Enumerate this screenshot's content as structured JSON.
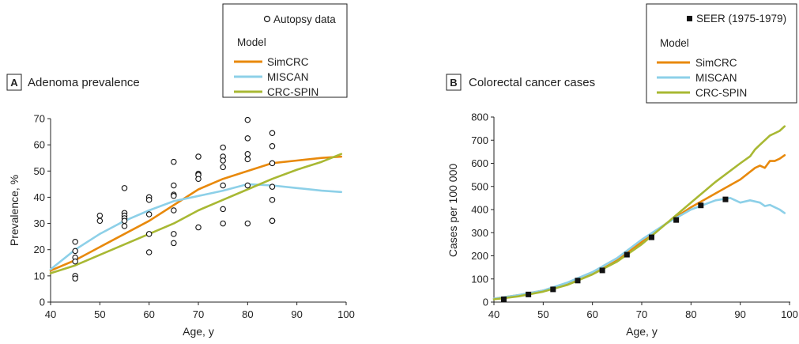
{
  "colors": {
    "simcrc": "#E8890C",
    "miscan": "#8DD0E8",
    "crcspin": "#A8B833",
    "marker": "#111111"
  },
  "chart_data": [
    {
      "type": "line",
      "letter": "A",
      "title": "Adenoma prevalence",
      "xlabel": "Age, y",
      "ylabel": "Prevalence, %",
      "xlim": [
        40,
        100
      ],
      "ylim": [
        0,
        70
      ],
      "xticks": [
        "40",
        "50",
        "60",
        "70",
        "80",
        "90",
        "100"
      ],
      "yticks": [
        "0",
        "10",
        "20",
        "30",
        "40",
        "50",
        "60",
        "70"
      ],
      "legend": {
        "marker_label": "Autopsy data",
        "model_label": "Model",
        "series_labels": [
          "SimCRC",
          "MISCAN",
          "CRC-SPIN"
        ]
      },
      "scatter": {
        "name": "Autopsy data",
        "points": [
          [
            45,
            23
          ],
          [
            45,
            19.5
          ],
          [
            45,
            17
          ],
          [
            45,
            15.5
          ],
          [
            45,
            10
          ],
          [
            45,
            9
          ],
          [
            50,
            33
          ],
          [
            50,
            31
          ],
          [
            55,
            43.5
          ],
          [
            55,
            34
          ],
          [
            55,
            33
          ],
          [
            55,
            32
          ],
          [
            55,
            31
          ],
          [
            55,
            29
          ],
          [
            60,
            40
          ],
          [
            60,
            39
          ],
          [
            60,
            33.5
          ],
          [
            60,
            26
          ],
          [
            60,
            19
          ],
          [
            65,
            53.5
          ],
          [
            65,
            44.5
          ],
          [
            65,
            41
          ],
          [
            65,
            40.5
          ],
          [
            65,
            35
          ],
          [
            65,
            26
          ],
          [
            65,
            22.5
          ],
          [
            70,
            55.5
          ],
          [
            70,
            49
          ],
          [
            70,
            48.5
          ],
          [
            70,
            47
          ],
          [
            70,
            28.5
          ],
          [
            75,
            59
          ],
          [
            75,
            55.5
          ],
          [
            75,
            54
          ],
          [
            75,
            51.5
          ],
          [
            75,
            44.5
          ],
          [
            75,
            35.5
          ],
          [
            75,
            30
          ],
          [
            80,
            69.5
          ],
          [
            80,
            62.5
          ],
          [
            80,
            56.5
          ],
          [
            80,
            54.5
          ],
          [
            80,
            44.5
          ],
          [
            80,
            30
          ],
          [
            85,
            64.5
          ],
          [
            85,
            59.5
          ],
          [
            85,
            53
          ],
          [
            85,
            44
          ],
          [
            85,
            39
          ],
          [
            85,
            31
          ],
          [
            85,
            31
          ]
        ]
      },
      "series": [
        {
          "name": "SimCRC",
          "x": [
            40,
            45,
            50,
            55,
            60,
            65,
            70,
            75,
            80,
            85,
            90,
            95,
            99
          ],
          "y": [
            12,
            16,
            21,
            26,
            31,
            37,
            43,
            47,
            50,
            53,
            54,
            55,
            55.5
          ]
        },
        {
          "name": "MISCAN",
          "x": [
            40,
            45,
            50,
            55,
            60,
            65,
            70,
            75,
            80,
            85,
            90,
            95,
            99
          ],
          "y": [
            12.5,
            20,
            26,
            31,
            35,
            38.5,
            40.5,
            42.5,
            45,
            44.5,
            43.5,
            42.5,
            42
          ]
        },
        {
          "name": "CRC-SPIN",
          "x": [
            40,
            45,
            50,
            55,
            60,
            65,
            70,
            75,
            80,
            85,
            90,
            95,
            99
          ],
          "y": [
            11,
            14,
            18,
            22,
            26,
            30,
            35,
            39,
            43,
            47,
            50.5,
            53.5,
            56.5
          ]
        }
      ]
    },
    {
      "type": "line",
      "letter": "B",
      "title": "Colorectal cancer cases",
      "xlabel": "Age, y",
      "ylabel": "Cases per 100 000",
      "xlim": [
        40,
        100
      ],
      "ylim": [
        0,
        800
      ],
      "xticks": [
        "40",
        "50",
        "60",
        "70",
        "80",
        "90",
        "100"
      ],
      "yticks": [
        "0",
        "100",
        "200",
        "300",
        "400",
        "500",
        "600",
        "700",
        "800"
      ],
      "legend": {
        "marker_label": "SEER (1975-1979)",
        "model_label": "Model",
        "series_labels": [
          "SimCRC",
          "MISCAN",
          "CRC-SPIN"
        ]
      },
      "scatter": {
        "name": "SEER (1975-1979)",
        "points": [
          [
            42,
            12
          ],
          [
            47,
            33
          ],
          [
            52,
            55
          ],
          [
            57,
            93
          ],
          [
            62,
            137
          ],
          [
            67,
            205
          ],
          [
            72,
            280
          ],
          [
            77,
            355
          ],
          [
            82,
            418
          ],
          [
            87,
            444
          ]
        ]
      },
      "series": [
        {
          "name": "SimCRC",
          "x": [
            40,
            45,
            50,
            55,
            60,
            65,
            70,
            75,
            80,
            85,
            90,
            93,
            94,
            95,
            96,
            97,
            98,
            99
          ],
          "y": [
            15,
            30,
            50,
            80,
            120,
            180,
            260,
            340,
            410,
            470,
            530,
            580,
            590,
            580,
            610,
            610,
            620,
            635
          ]
        },
        {
          "name": "MISCAN",
          "x": [
            40,
            45,
            50,
            55,
            60,
            65,
            70,
            75,
            80,
            85,
            88,
            90,
            92,
            94,
            95,
            96,
            97,
            98,
            99
          ],
          "y": [
            15,
            30,
            50,
            85,
            130,
            190,
            270,
            340,
            400,
            440,
            450,
            430,
            440,
            430,
            415,
            420,
            410,
            400,
            385
          ]
        },
        {
          "name": "CRC-SPIN",
          "x": [
            40,
            45,
            50,
            55,
            60,
            65,
            70,
            75,
            80,
            85,
            90,
            92,
            93,
            94,
            95,
            96,
            97,
            98,
            99
          ],
          "y": [
            12,
            25,
            45,
            75,
            120,
            175,
            250,
            340,
            430,
            520,
            600,
            630,
            660,
            680,
            700,
            720,
            730,
            740,
            760
          ]
        }
      ]
    }
  ]
}
